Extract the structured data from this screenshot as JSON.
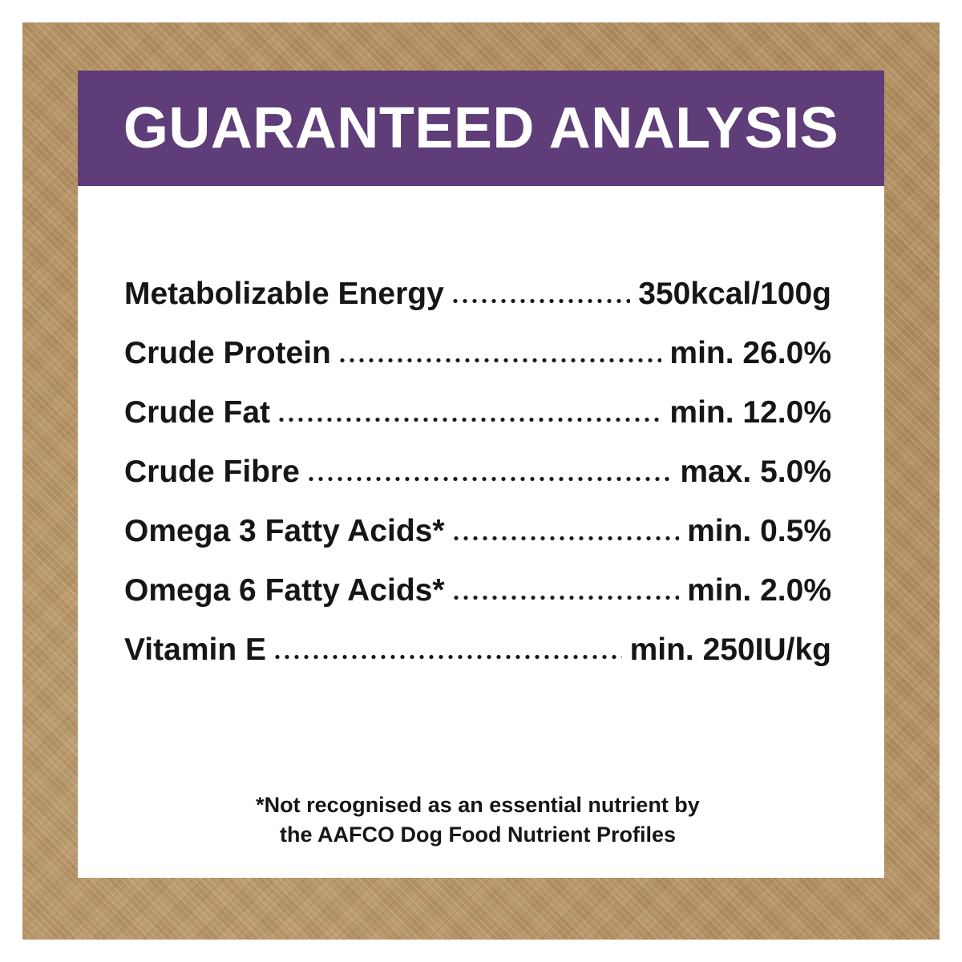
{
  "colors": {
    "frame-tan": "#b28f62",
    "header-purple": "#5e3d78",
    "header-text": "#ffffff",
    "panel-bg": "#ffffff",
    "body-text": "#161616"
  },
  "header": {
    "title": "GUARANTEED ANALYSIS"
  },
  "analysis": {
    "rows": [
      {
        "label": "Metabolizable Energy",
        "value": "350kcal/100g"
      },
      {
        "label": "Crude Protein",
        "value": "min. 26.0%"
      },
      {
        "label": "Crude Fat",
        "value": "min. 12.0%"
      },
      {
        "label": "Crude Fibre",
        "value": "max. 5.0%"
      },
      {
        "label": "Omega 3 Fatty Acids*",
        "value": "min. 0.5%"
      },
      {
        "label": "Omega 6 Fatty Acids*",
        "value": "min. 2.0%"
      },
      {
        "label": "Vitamin E",
        "value": "min. 250IU/kg"
      }
    ]
  },
  "footnote": {
    "line1": "*Not recognised as an essential nutrient by",
    "line2": "the AAFCO Dog Food Nutrient Profiles"
  }
}
